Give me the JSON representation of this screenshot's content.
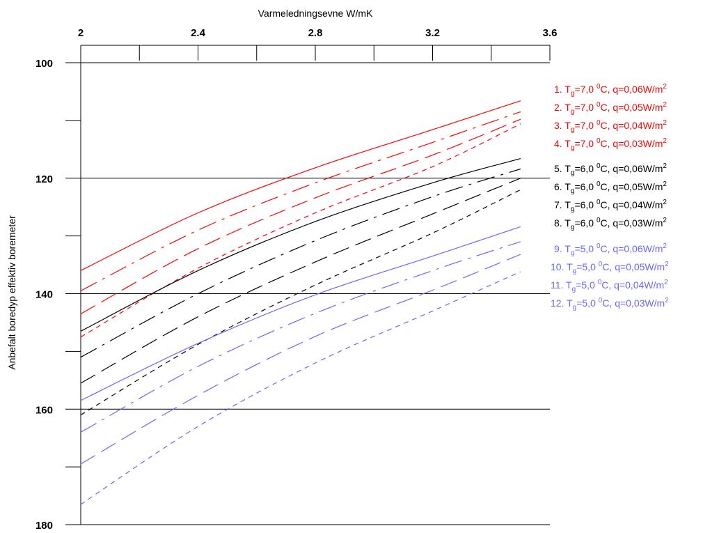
{
  "chart_data": {
    "type": "line",
    "xlabel": "Varmeledningsevne W/mK",
    "ylabel": "Anbefalt boredyp effektiv boremeter",
    "x_axis_position": "top",
    "y_inverted": true,
    "xlim": [
      2.0,
      3.6
    ],
    "ylim": [
      100,
      180
    ],
    "x_ticks": [
      "2",
      "2.4",
      "2.8",
      "3.2",
      "3.6"
    ],
    "y_ticks": [
      "100",
      "120",
      "140",
      "160",
      "180"
    ],
    "y_gridlines": [
      120,
      140,
      160
    ],
    "grid": "horizontal major",
    "legend_position": "right",
    "series": [
      {
        "name": "1. T_g=7,0 ⁰C, q=0,06W/m²",
        "legend": {
          "pre": "1. T",
          "sub": "g",
          "mid": "=7,0 ",
          "sup": "0",
          "post": "C, q=0,06W/m",
          "sup2": "2"
        },
        "color": "#ff0000",
        "dash": "solid",
        "x": [
          2.0,
          2.4,
          2.8,
          3.2,
          3.5
        ],
        "y": [
          136.0,
          126.0,
          118.2,
          111.6,
          106.6
        ]
      },
      {
        "name": "2. T_g=7,0 ⁰C, q=0,05W/m²",
        "legend": {
          "pre": "2. T",
          "sub": "g",
          "mid": "=7,0 ",
          "sup": "0",
          "post": "C, q=0,05W/m",
          "sup2": "2"
        },
        "color": "#ff0000",
        "dash": "dashdot",
        "x": [
          2.0,
          2.4,
          2.8,
          3.2,
          3.5
        ],
        "y": [
          139.5,
          129.0,
          120.8,
          113.8,
          108.5
        ]
      },
      {
        "name": "3. T_g=7,0 ⁰C, q=0,04W/m²",
        "legend": {
          "pre": "3. T",
          "sub": "g",
          "mid": "=7,0 ",
          "sup": "0",
          "post": "C, q=0,04W/m",
          "sup2": "2"
        },
        "color": "#ff0000",
        "dash": "longdash",
        "x": [
          2.0,
          2.4,
          2.8,
          3.2,
          3.5
        ],
        "y": [
          143.5,
          132.2,
          123.4,
          116.0,
          109.8
        ]
      },
      {
        "name": "4. T_g=7,0 ⁰C, q=0,03W/m²",
        "legend": {
          "pre": "4. T",
          "sub": "g",
          "mid": "=7,0 ",
          "sup": "0",
          "post": "C, q=0,03W/m",
          "sup2": "2"
        },
        "color": "#ff0000",
        "dash": "shortdash",
        "x": [
          2.0,
          2.4,
          2.8,
          3.2,
          3.5
        ],
        "y": [
          147.5,
          135.6,
          126.0,
          118.0,
          110.6
        ]
      },
      {
        "name": "5. T_g=6,0 ⁰C, q=0,06W/m²",
        "legend": {
          "pre": "5. T",
          "sub": "g",
          "mid": "=6,0 ",
          "sup": "0",
          "post": "C, q=0,06W/m",
          "sup2": "2"
        },
        "color": "#000000",
        "dash": "solid",
        "x": [
          2.0,
          2.4,
          2.8,
          3.2,
          3.5
        ],
        "y": [
          146.5,
          136.0,
          127.5,
          120.8,
          116.6
        ]
      },
      {
        "name": "6. T_g=6,0 ⁰C, q=0,05W/m²",
        "legend": {
          "pre": "6. T",
          "sub": "g",
          "mid": "=6,0 ",
          "sup": "0",
          "post": "C, q=0,05W/m",
          "sup2": "2"
        },
        "color": "#000000",
        "dash": "dashdot",
        "x": [
          2.0,
          2.4,
          2.8,
          3.2,
          3.5
        ],
        "y": [
          151.0,
          140.0,
          130.8,
          123.2,
          118.4
        ]
      },
      {
        "name": "7. T_g=6,0 ⁰C, q=0,04W/m²",
        "legend": {
          "pre": "7. T",
          "sub": "g",
          "mid": "=6,0 ",
          "sup": "0",
          "post": "C, q=0,04W/m",
          "sup2": "2"
        },
        "color": "#000000",
        "dash": "longdash",
        "x": [
          2.0,
          2.4,
          2.8,
          3.2,
          3.5
        ],
        "y": [
          155.5,
          144.0,
          134.5,
          126.2,
          120.0
        ]
      },
      {
        "name": "8. T_g=6,0 ⁰C, q=0,03W/m²",
        "legend": {
          "pre": "8. T",
          "sub": "g",
          "mid": "=6,0 ",
          "sup": "0",
          "post": "C, q=0,03W/m",
          "sup2": "2"
        },
        "color": "#000000",
        "dash": "shortdash",
        "x": [
          2.0,
          2.4,
          2.8,
          3.2,
          3.5
        ],
        "y": [
          161.0,
          148.8,
          138.5,
          129.5,
          122.0
        ]
      },
      {
        "name": "9. T_g=5,0 ⁰C, q=0,06W/m²",
        "legend": {
          "pre": "9.   T",
          "sub": "g",
          "mid": "=5,0 ",
          "sup": "0",
          "post": "C, q=0,06W/m",
          "sup2": "2"
        },
        "color": "#6666ff",
        "dash": "solid",
        "x": [
          2.0,
          2.4,
          2.8,
          3.2,
          3.5
        ],
        "y": [
          158.5,
          148.6,
          140.2,
          133.5,
          128.4
        ]
      },
      {
        "name": "10. T_g=5,0 ⁰C, q=0,05W/m²",
        "legend": {
          "pre": "10. T",
          "sub": "g",
          "mid": "=5,0 ",
          "sup": "0",
          "post": "C, q=0,05W/m",
          "sup2": "2"
        },
        "color": "#6666ff",
        "dash": "dashdot",
        "x": [
          2.0,
          2.4,
          2.8,
          3.2,
          3.5
        ],
        "y": [
          164.0,
          152.6,
          143.4,
          136.0,
          131.0
        ]
      },
      {
        "name": "11. T_g=5,0 ⁰C, q=0,04W/m²",
        "legend": {
          "pre": "11. T",
          "sub": "g",
          "mid": "=5,0 ",
          "sup": "0",
          "post": "C, q=0,04W/m",
          "sup2": "2"
        },
        "color": "#6666ff",
        "dash": "longdash",
        "x": [
          2.0,
          2.4,
          2.8,
          3.2,
          3.5
        ],
        "y": [
          169.5,
          157.6,
          147.4,
          139.4,
          133.2
        ]
      },
      {
        "name": "12. T_g=5,0 ⁰C, q=0,03W/m²",
        "legend": {
          "pre": "12. T",
          "sub": "g",
          "mid": "=5,0 ",
          "sup": "0",
          "post": "C, q=0,03W/m",
          "sup2": "2"
        },
        "color": "#6666ff",
        "dash": "shortdash",
        "x": [
          2.0,
          2.4,
          2.8,
          3.2,
          3.5
        ],
        "y": [
          176.5,
          163.0,
          152.0,
          143.0,
          136.2
        ]
      }
    ]
  }
}
